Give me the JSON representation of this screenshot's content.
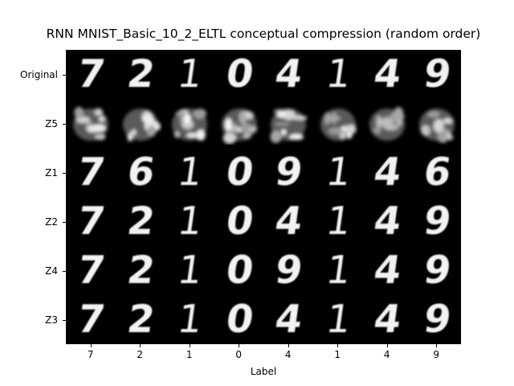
{
  "title": "RNN MNIST_Basic_10_2_ELTL conceptual compression (random order)",
  "xlabel": "Label",
  "rows": [
    "Original",
    "Z5",
    "Z1",
    "Z2",
    "Z4",
    "Z3"
  ],
  "columns": [
    "7",
    "2",
    "1",
    "0",
    "4",
    "1",
    "4",
    "9"
  ],
  "grid": {
    "Original": [
      "7",
      "2",
      "1",
      "0",
      "4",
      "1",
      "4",
      "9"
    ],
    "Z5": [
      "blob",
      "blob",
      "blob",
      "blob",
      "blob",
      "blob",
      "blob",
      "blob"
    ],
    "Z1": [
      "7",
      "6",
      "1",
      "0",
      "9",
      "1",
      "4",
      "6"
    ],
    "Z2": [
      "7",
      "2",
      "1",
      "0",
      "4",
      "1",
      "4",
      "9"
    ],
    "Z4": [
      "7",
      "2",
      "1",
      "0",
      "9",
      "1",
      "4",
      "9"
    ],
    "Z3": [
      "7",
      "2",
      "1",
      "0",
      "4",
      "1",
      "4",
      "9"
    ]
  },
  "colors": {
    "background": "#000000",
    "digit": "#f2f2f2",
    "blob": "#cfcfcf"
  }
}
